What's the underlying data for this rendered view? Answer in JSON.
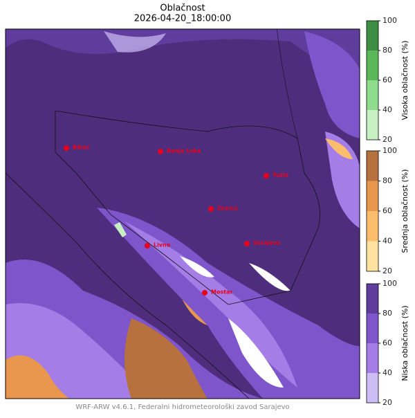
{
  "header": {
    "title": "Oblačnost",
    "subtitle": "2026-04-20_18:00:00"
  },
  "cities": [
    "Bihać",
    "Banja Luka",
    "Tuzla",
    "Zenica",
    "Livno",
    "Sarajevo",
    "Mostar"
  ],
  "colorbars": [
    {
      "label": "Visoka oblačnost (%)",
      "ticks": [
        20,
        40,
        60,
        80,
        100
      ],
      "colors": [
        "#c6f0c2",
        "#8fdc8c",
        "#5bb85a",
        "#3d8d45"
      ]
    },
    {
      "label": "Srednja oblačnost (%)",
      "ticks": [
        20,
        40,
        60,
        80,
        100
      ],
      "colors": [
        "#fde2a0",
        "#fcbe6c",
        "#e9974f",
        "#b6713e"
      ]
    },
    {
      "label": "Niska oblačnost (%)",
      "ticks": [
        20,
        40,
        60,
        80,
        100
      ],
      "colors": [
        "#cdbdf6",
        "#a47de6",
        "#7f55cb",
        "#5e3d9c"
      ]
    }
  ],
  "footer": "WRF-ARW v4.6.1, Federalni hidrometeorološki zavod Sarajevo"
}
